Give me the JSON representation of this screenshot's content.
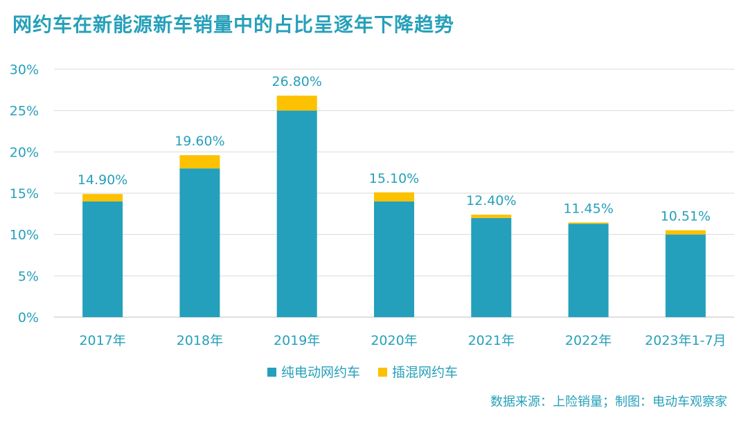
{
  "title": "网约车在新能源新车销量中的占比呈逐年下降趋势",
  "source": "数据来源：上险销量；制图：电动车观察家",
  "colors": {
    "title": "#26a0ba",
    "bev": "#24a0bc",
    "phev": "#fcc100",
    "axis_text": "#26a0ba",
    "grid": "#d9d9d9"
  },
  "chart_data": {
    "type": "bar",
    "stacked": true,
    "categories": [
      "2017年",
      "2018年",
      "2019年",
      "2020年",
      "2021年",
      "2022年",
      "2023年1-7月"
    ],
    "series": [
      {
        "name": "纯电动网约车",
        "values": [
          14.0,
          18.0,
          25.0,
          14.0,
          12.0,
          11.3,
          10.0
        ]
      },
      {
        "name": "插混网约车",
        "values": [
          0.9,
          1.6,
          1.8,
          1.1,
          0.4,
          0.15,
          0.51
        ]
      }
    ],
    "data_labels": [
      "14.90%",
      "19.60%",
      "26.80%",
      "15.10%",
      "12.40%",
      "11.45%",
      "10.51%"
    ],
    "y_ticks": [
      "0%",
      "5%",
      "10%",
      "15%",
      "20%",
      "25%",
      "30%"
    ],
    "ylim": [
      0,
      30
    ],
    "grid": true,
    "legend_position": "bottom"
  }
}
